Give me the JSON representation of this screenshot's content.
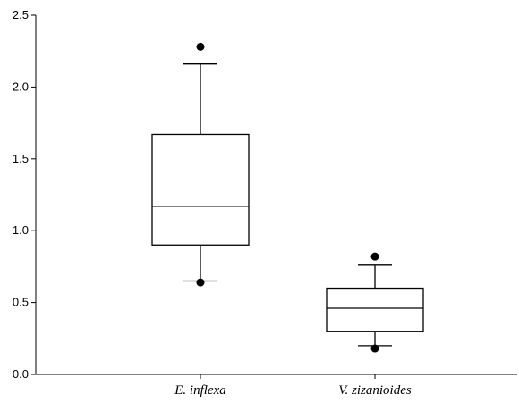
{
  "chart_data": {
    "type": "box",
    "title": "",
    "xlabel": "",
    "ylabel": "",
    "ylim": [
      0,
      2.5
    ],
    "yticks": [
      0.0,
      0.5,
      1.0,
      1.5,
      2.0,
      2.5
    ],
    "ytick_labels": [
      "0.0",
      "0.5",
      "1.0",
      "1.5",
      "2.0",
      "2.5"
    ],
    "grid": false,
    "categories": [
      "E. inflexa",
      "V. zizanioides"
    ],
    "boxes": [
      {
        "category": "E. inflexa",
        "whisker_low": 0.65,
        "q1": 0.9,
        "median": 1.17,
        "q3": 1.67,
        "whisker_high": 2.16,
        "outliers": [
          0.64,
          2.28
        ]
      },
      {
        "category": "V. zizanioides",
        "whisker_low": 0.2,
        "q1": 0.3,
        "median": 0.46,
        "q3": 0.6,
        "whisker_high": 0.76,
        "outliers": [
          0.18,
          0.82
        ]
      }
    ],
    "colors": {
      "stroke": "#000000",
      "box_fill": "#ffffff",
      "outlier": "#000000"
    }
  }
}
